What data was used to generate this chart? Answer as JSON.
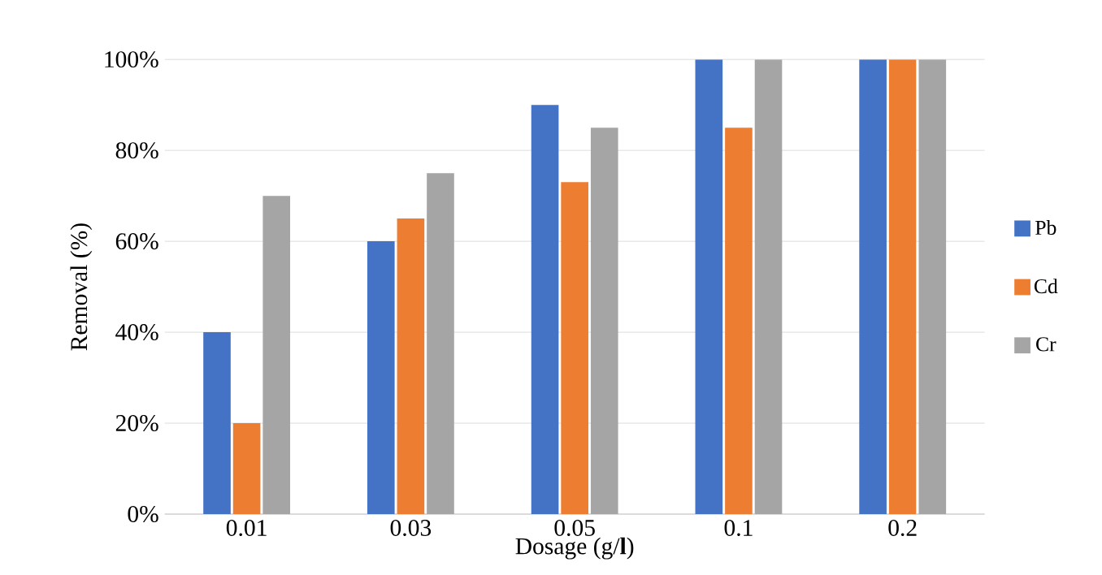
{
  "chart_data": {
    "type": "bar",
    "xlabel": "Dosage (g/**l**)",
    "ylabel": "Removal (%)",
    "categories": [
      "0.01",
      "0.03",
      "0.05",
      "0.1",
      "0.2"
    ],
    "series": [
      {
        "name": "Pb",
        "color": "#4472c4",
        "values": [
          40,
          60,
          90,
          100,
          100
        ]
      },
      {
        "name": "Cd",
        "color": "#ed7d31",
        "values": [
          20,
          65,
          73,
          85,
          100
        ]
      },
      {
        "name": "Cr",
        "color": "#a5a5a5",
        "values": [
          70,
          75,
          85,
          100,
          100
        ]
      }
    ],
    "ylim": [
      0,
      100
    ],
    "yticks": [
      {
        "value": 0,
        "label": "0%"
      },
      {
        "value": 20,
        "label": "20%"
      },
      {
        "value": 40,
        "label": "40%"
      },
      {
        "value": 60,
        "label": "60%"
      },
      {
        "value": 80,
        "label": "80%"
      },
      {
        "value": 100,
        "label": "100%"
      }
    ],
    "grid": "y",
    "legend": "right"
  }
}
